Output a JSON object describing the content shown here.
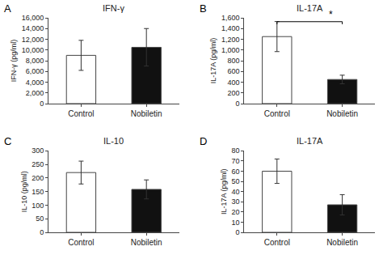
{
  "chart_data": [
    {
      "type": "bar",
      "title": "IFN-γ",
      "ylabel": "IFN-γ (pg/ml)",
      "categories": [
        "Control",
        "Nobiletin"
      ],
      "values": [
        9000,
        10500
      ],
      "errors": [
        2800,
        3500
      ],
      "colors": [
        "white",
        "#111111"
      ],
      "ylim": [
        0,
        16000
      ],
      "yticks": [
        0,
        {
          "value": 2000,
          "label": "2,000"
        },
        {
          "value": 4000,
          "label": "4,000"
        },
        {
          "value": 6000,
          "label": "6,000"
        },
        {
          "value": 8000,
          "label": "8,000"
        },
        {
          "value": 10000,
          "label": "10,000"
        },
        {
          "value": 12000,
          "label": "12,000"
        },
        {
          "value": 14000,
          "label": "14,000"
        },
        {
          "value": 16000,
          "label": "16,000"
        }
      ],
      "grid": false,
      "annotations": [
        {
          "type": "panel_label",
          "text": "A"
        }
      ]
    },
    {
      "type": "bar",
      "title": "IL-17A",
      "ylabel": "IL-17A (pg/ml)",
      "categories": [
        "Control",
        "Nobiletin"
      ],
      "values": [
        1250,
        450
      ],
      "errors": [
        280,
        80
      ],
      "colors": [
        "white",
        "#111111"
      ],
      "ylim": [
        0,
        1600
      ],
      "yticks": [
        0,
        200,
        400,
        600,
        800,
        {
          "value": 1000,
          "label": "1,000"
        },
        {
          "value": 1200,
          "label": "1,200"
        },
        {
          "value": 1400,
          "label": "1,400"
        },
        {
          "value": 1600,
          "label": "1,600"
        }
      ],
      "grid": false,
      "annotations": [
        {
          "type": "panel_label",
          "text": "B"
        },
        {
          "type": "significance",
          "text": "*",
          "between": [
            "Control",
            "Nobiletin"
          ]
        }
      ]
    },
    {
      "type": "bar",
      "title": "IL-10",
      "ylabel": "IL-10 (pg/ml)",
      "categories": [
        "Control",
        "Nobiletin"
      ],
      "values": [
        220,
        158
      ],
      "errors": [
        42,
        35
      ],
      "colors": [
        "white",
        "#111111"
      ],
      "ylim": [
        0,
        300
      ],
      "yticks": [
        0,
        50,
        100,
        150,
        200,
        250,
        300
      ],
      "grid": false,
      "annotations": [
        {
          "type": "panel_label",
          "text": "C"
        }
      ]
    },
    {
      "type": "bar",
      "title": "IL-17A",
      "ylabel": "IL-17A (pg/ml)",
      "categories": [
        "Control",
        "Nobiletin"
      ],
      "values": [
        60,
        27
      ],
      "errors": [
        12,
        10
      ],
      "colors": [
        "white",
        "#111111"
      ],
      "ylim": [
        0,
        80
      ],
      "yticks": [
        0,
        10,
        20,
        30,
        40,
        50,
        60,
        70,
        80
      ],
      "grid": false,
      "annotations": [
        {
          "type": "panel_label",
          "text": "D"
        }
      ]
    }
  ]
}
